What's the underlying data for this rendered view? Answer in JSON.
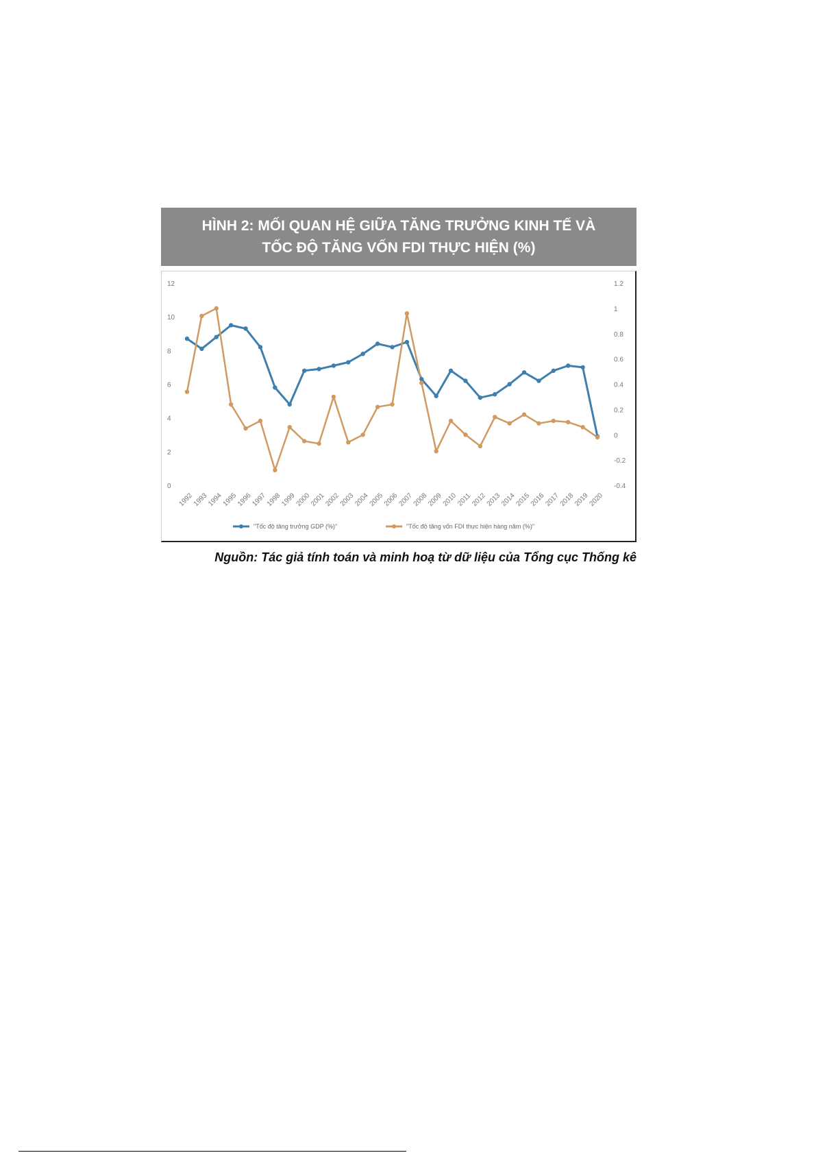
{
  "figure": {
    "title_line1": "HÌNH 2: MỐI QUAN HỆ GIỮA TĂNG TRƯỞNG KINH TẾ VÀ",
    "title_line2": "TỐC ĐỘ TĂNG VỐN FDI THỰC HIỆN (%)",
    "source": "Nguồn: Tác giả tính toán và minh hoạ từ dữ liệu của Tổng cục Thống kê"
  },
  "colors": {
    "gdp": "#3f7fae",
    "fdi": "#d19a62",
    "title_bg": "#8a8a8a"
  },
  "chart_data": {
    "type": "line",
    "categories": [
      "1992",
      "1993",
      "1994",
      "1995",
      "1996",
      "1997",
      "1998",
      "1999",
      "2000",
      "2001",
      "2002",
      "2003",
      "2004",
      "2005",
      "2006",
      "2007",
      "2008",
      "2009",
      "2010",
      "2011",
      "2012",
      "2013",
      "2014",
      "2015",
      "2016",
      "2017",
      "2018",
      "2019",
      "2020"
    ],
    "series": [
      {
        "name": "\"Tốc độ tăng trưởng GDP (%)\"",
        "axis": "left",
        "values": [
          8.7,
          8.1,
          8.8,
          9.5,
          9.3,
          8.2,
          5.8,
          4.8,
          6.8,
          6.9,
          7.1,
          7.3,
          7.8,
          8.4,
          8.2,
          8.5,
          6.3,
          5.3,
          6.8,
          6.2,
          5.2,
          5.4,
          6.0,
          6.7,
          6.2,
          6.8,
          7.1,
          7.0,
          2.9
        ]
      },
      {
        "name": "\"Tốc độ tăng vốn FDI thực hiện hàng năm (%)\"",
        "axis": "right",
        "values": [
          0.34,
          0.94,
          1.0,
          0.24,
          0.05,
          0.11,
          -0.28,
          0.06,
          -0.05,
          -0.07,
          0.3,
          -0.06,
          0.0,
          0.22,
          0.24,
          0.96,
          0.41,
          -0.13,
          0.11,
          0.0,
          -0.09,
          0.14,
          0.09,
          0.16,
          0.09,
          0.11,
          0.1,
          0.06,
          -0.02
        ]
      }
    ],
    "yleft": {
      "ylim": [
        0,
        12
      ],
      "ticks": [
        "0",
        "2",
        "4",
        "6",
        "8",
        "10",
        "12"
      ]
    },
    "yright": {
      "ylim": [
        -0.4,
        1.2
      ],
      "ticks": [
        "-0.4",
        "-0.2",
        "0",
        "0.2",
        "0.4",
        "0.6",
        "0.8",
        "1",
        "1.2"
      ]
    },
    "grid": false,
    "legend_position": "bottom"
  }
}
